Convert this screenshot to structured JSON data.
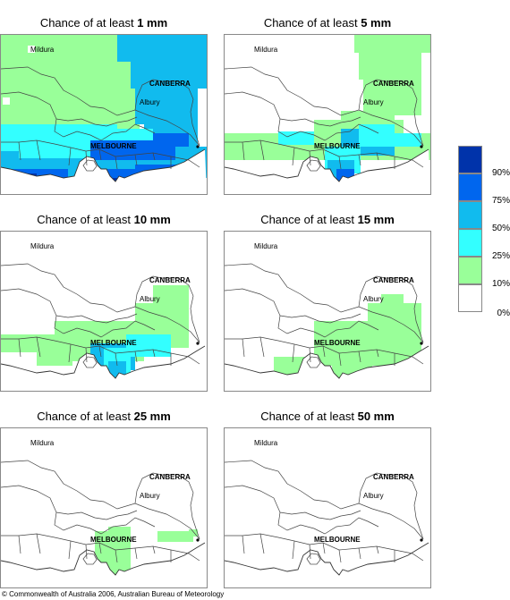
{
  "panels": [
    {
      "prefix": "Chance of at least ",
      "amount": "1 mm"
    },
    {
      "prefix": "Chance of at least ",
      "amount": "5 mm"
    },
    {
      "prefix": "Chance of at least ",
      "amount": "10 mm"
    },
    {
      "prefix": "Chance of at least ",
      "amount": "15 mm"
    },
    {
      "prefix": "Chance of at least ",
      "amount": "25 mm"
    },
    {
      "prefix": "Chance of at least ",
      "amount": "50 mm"
    }
  ],
  "places": {
    "mildura": "Mildura",
    "canberra": "CANBERRA",
    "albury": "Albury",
    "melbourne": "MELBOURNE"
  },
  "legend": {
    "classes": [
      {
        "label": "90%",
        "color": "#0033aa"
      },
      {
        "label": "75%",
        "color": "#0066ee"
      },
      {
        "label": "50%",
        "color": "#11bbee"
      },
      {
        "label": "25%",
        "color": "#33ffff"
      },
      {
        "label": "10%",
        "color": "#99ff99"
      },
      {
        "label": "0%",
        "color": "#ffffff"
      }
    ]
  },
  "copyright": "© Commonwealth of Australia 2006, Australian Bureau of Meteorology"
}
